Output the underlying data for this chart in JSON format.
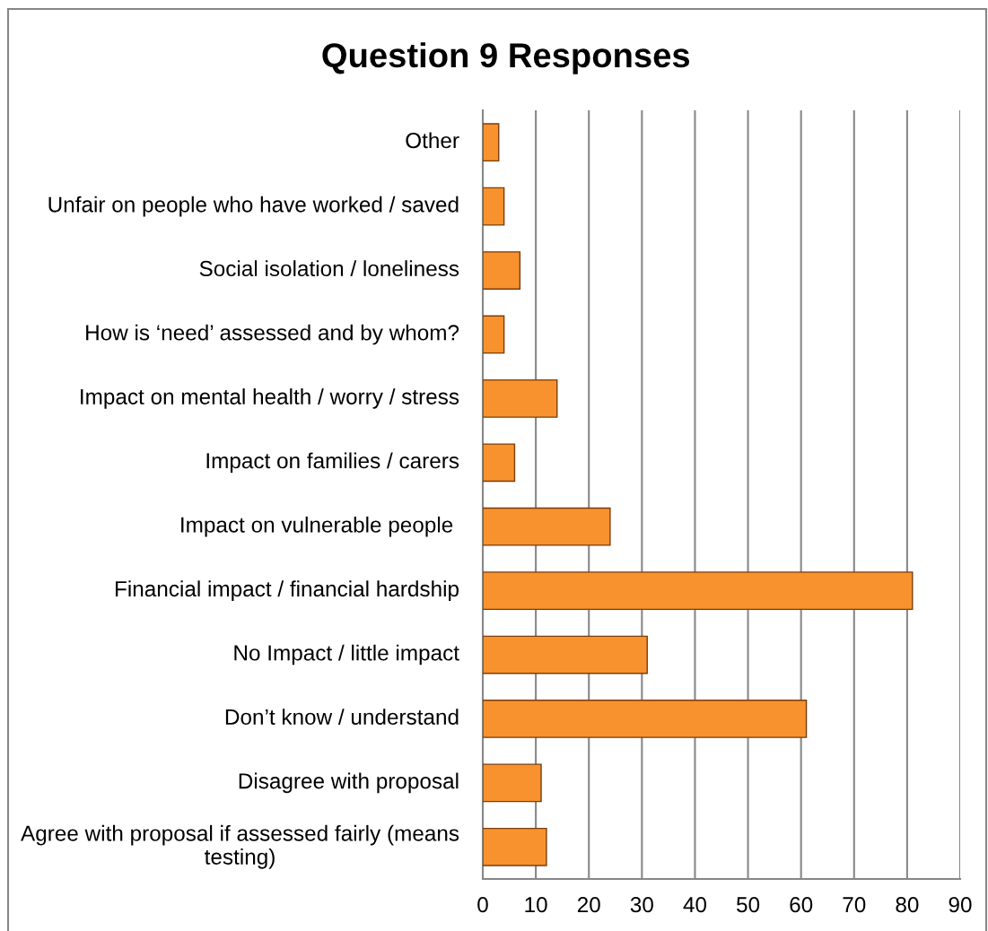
{
  "chart_data": {
    "type": "bar",
    "orientation": "horizontal",
    "title": "Question 9 Responses",
    "categories": [
      "Other",
      "Unfair on people who have worked / saved",
      "Social isolation / loneliness",
      "How is ‘need’ assessed and by whom?",
      "Impact on mental health / worry / stress",
      "Impact on families / carers",
      "Impact on vulnerable people ",
      "Financial impact / financial hardship",
      "No Impact / little impact",
      "Don’t know / understand",
      "Disagree with proposal",
      "Agree with proposal if assessed fairly (means testing)"
    ],
    "values": [
      3,
      4,
      7,
      4,
      14,
      6,
      24,
      81,
      31,
      61,
      11,
      12
    ],
    "color": "#f7922f",
    "xlim": [
      0,
      90
    ],
    "xticks": [
      0,
      10,
      20,
      30,
      40,
      50,
      60,
      70,
      80,
      90
    ],
    "grid": "x"
  }
}
